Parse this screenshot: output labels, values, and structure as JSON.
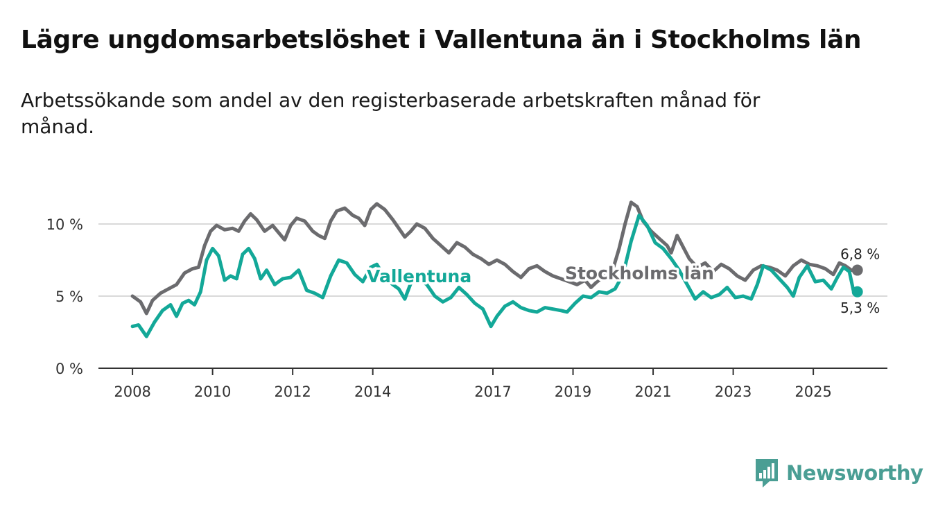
{
  "title": "Lägre ungdomsarbetslöshet i Vallentuna än i Stockholms län",
  "subtitle": "Arbetssökande som andel av den registerbaserade arbetskraften månad för månad.",
  "brand": {
    "name": "Newsworthy",
    "icon": "newsworthy-logo-icon",
    "color": "#4a9e94"
  },
  "chart_data": {
    "type": "line",
    "title": "Lägre ungdomsarbetslöshet i Vallentuna än i Stockholms län",
    "xlabel": "",
    "ylabel": "",
    "x_range": [
      2007.15,
      2026.85
    ],
    "ylim": [
      0,
      10
    ],
    "y_ticks": [
      {
        "value": 0,
        "label": "0 %"
      },
      {
        "value": 5,
        "label": "5 %"
      },
      {
        "value": 10,
        "label": "10 %"
      }
    ],
    "x_ticks": [
      {
        "value": 2008,
        "label": "2008"
      },
      {
        "value": 2010,
        "label": "2010"
      },
      {
        "value": 2012,
        "label": "2012"
      },
      {
        "value": 2014,
        "label": "2014"
      },
      {
        "value": 2017,
        "label": "2017"
      },
      {
        "value": 2019,
        "label": "2019"
      },
      {
        "value": 2021,
        "label": "2021"
      },
      {
        "value": 2023,
        "label": "2023"
      },
      {
        "value": 2025,
        "label": "2025"
      }
    ],
    "gridlines": "horizontal",
    "series": [
      {
        "name": "Stockholms län",
        "label": "Stockholms län",
        "color": "#6b6b6e",
        "label_at": [
          2018.8,
          6.6
        ],
        "end_label": "6,8 %",
        "end_value": 6.8,
        "points": [
          [
            2008.0,
            5.0
          ],
          [
            2008.2,
            4.6
          ],
          [
            2008.35,
            3.8
          ],
          [
            2008.5,
            4.7
          ],
          [
            2008.7,
            5.2
          ],
          [
            2008.9,
            5.5
          ],
          [
            2009.1,
            5.8
          ],
          [
            2009.3,
            6.6
          ],
          [
            2009.5,
            6.9
          ],
          [
            2009.65,
            7.0
          ],
          [
            2009.8,
            8.5
          ],
          [
            2009.95,
            9.5
          ],
          [
            2010.1,
            9.9
          ],
          [
            2010.3,
            9.6
          ],
          [
            2010.5,
            9.7
          ],
          [
            2010.65,
            9.5
          ],
          [
            2010.8,
            10.2
          ],
          [
            2010.95,
            10.7
          ],
          [
            2011.1,
            10.3
          ],
          [
            2011.3,
            9.5
          ],
          [
            2011.5,
            9.9
          ],
          [
            2011.65,
            9.4
          ],
          [
            2011.8,
            8.9
          ],
          [
            2011.95,
            9.9
          ],
          [
            2012.1,
            10.4
          ],
          [
            2012.3,
            10.2
          ],
          [
            2012.5,
            9.5
          ],
          [
            2012.65,
            9.2
          ],
          [
            2012.8,
            9.0
          ],
          [
            2012.95,
            10.2
          ],
          [
            2013.1,
            10.9
          ],
          [
            2013.3,
            11.1
          ],
          [
            2013.5,
            10.6
          ],
          [
            2013.65,
            10.4
          ],
          [
            2013.8,
            9.9
          ],
          [
            2013.95,
            11.0
          ],
          [
            2014.1,
            11.4
          ],
          [
            2014.3,
            11.0
          ],
          [
            2014.5,
            10.3
          ],
          [
            2014.65,
            9.7
          ],
          [
            2014.8,
            9.1
          ],
          [
            2014.95,
            9.5
          ],
          [
            2015.1,
            10.0
          ],
          [
            2015.3,
            9.7
          ],
          [
            2015.5,
            9.0
          ],
          [
            2015.7,
            8.5
          ],
          [
            2015.9,
            8.0
          ],
          [
            2016.1,
            8.7
          ],
          [
            2016.3,
            8.4
          ],
          [
            2016.5,
            7.9
          ],
          [
            2016.7,
            7.6
          ],
          [
            2016.9,
            7.2
          ],
          [
            2017.1,
            7.5
          ],
          [
            2017.3,
            7.2
          ],
          [
            2017.5,
            6.7
          ],
          [
            2017.7,
            6.3
          ],
          [
            2017.9,
            6.9
          ],
          [
            2018.1,
            7.1
          ],
          [
            2018.3,
            6.7
          ],
          [
            2018.5,
            6.4
          ],
          [
            2018.7,
            6.2
          ],
          [
            2018.9,
            6.0
          ],
          [
            2019.1,
            5.8
          ],
          [
            2019.3,
            6.1
          ],
          [
            2019.45,
            5.6
          ],
          [
            2019.6,
            6.0
          ],
          [
            2019.8,
            6.4
          ],
          [
            2020.0,
            6.9
          ],
          [
            2020.15,
            8.3
          ],
          [
            2020.3,
            10.0
          ],
          [
            2020.45,
            11.5
          ],
          [
            2020.6,
            11.2
          ],
          [
            2020.75,
            10.2
          ],
          [
            2020.95,
            9.5
          ],
          [
            2021.15,
            9.0
          ],
          [
            2021.35,
            8.5
          ],
          [
            2021.45,
            8.0
          ],
          [
            2021.6,
            9.2
          ],
          [
            2021.75,
            8.4
          ],
          [
            2021.9,
            7.6
          ],
          [
            2022.1,
            7.0
          ],
          [
            2022.3,
            7.3
          ],
          [
            2022.5,
            6.7
          ],
          [
            2022.7,
            7.2
          ],
          [
            2022.9,
            6.9
          ],
          [
            2023.1,
            6.4
          ],
          [
            2023.3,
            6.1
          ],
          [
            2023.5,
            6.8
          ],
          [
            2023.7,
            7.1
          ],
          [
            2023.9,
            7.0
          ],
          [
            2024.1,
            6.8
          ],
          [
            2024.3,
            6.4
          ],
          [
            2024.5,
            7.1
          ],
          [
            2024.7,
            7.5
          ],
          [
            2024.9,
            7.2
          ],
          [
            2025.1,
            7.1
          ],
          [
            2025.3,
            6.9
          ],
          [
            2025.5,
            6.5
          ],
          [
            2025.65,
            7.3
          ],
          [
            2025.8,
            7.1
          ],
          [
            2025.95,
            6.8
          ],
          [
            2026.1,
            6.8
          ]
        ]
      },
      {
        "name": "Vallentuna",
        "label": "Vallentuna",
        "color": "#13a898",
        "label_at": [
          2013.85,
          6.4
        ],
        "end_label": "5,3 %",
        "end_value": 5.3,
        "points": [
          [
            2008.0,
            2.9
          ],
          [
            2008.15,
            3.0
          ],
          [
            2008.35,
            2.2
          ],
          [
            2008.55,
            3.2
          ],
          [
            2008.75,
            4.0
          ],
          [
            2008.95,
            4.4
          ],
          [
            2009.1,
            3.6
          ],
          [
            2009.25,
            4.5
          ],
          [
            2009.4,
            4.7
          ],
          [
            2009.55,
            4.4
          ],
          [
            2009.7,
            5.3
          ],
          [
            2009.85,
            7.5
          ],
          [
            2010.0,
            8.3
          ],
          [
            2010.15,
            7.8
          ],
          [
            2010.3,
            6.1
          ],
          [
            2010.45,
            6.4
          ],
          [
            2010.6,
            6.2
          ],
          [
            2010.75,
            7.9
          ],
          [
            2010.9,
            8.3
          ],
          [
            2011.05,
            7.6
          ],
          [
            2011.2,
            6.2
          ],
          [
            2011.35,
            6.8
          ],
          [
            2011.55,
            5.8
          ],
          [
            2011.75,
            6.2
          ],
          [
            2011.95,
            6.3
          ],
          [
            2012.15,
            6.8
          ],
          [
            2012.35,
            5.4
          ],
          [
            2012.55,
            5.2
          ],
          [
            2012.75,
            4.9
          ],
          [
            2012.95,
            6.4
          ],
          [
            2013.15,
            7.5
          ],
          [
            2013.35,
            7.3
          ],
          [
            2013.55,
            6.5
          ],
          [
            2013.75,
            6.0
          ],
          [
            2013.95,
            7.0
          ],
          [
            2014.1,
            7.2
          ],
          [
            2014.3,
            6.3
          ],
          [
            2014.5,
            5.8
          ],
          [
            2014.65,
            5.5
          ],
          [
            2014.8,
            4.8
          ],
          [
            2014.95,
            5.9
          ],
          [
            2015.15,
            6.2
          ],
          [
            2015.35,
            5.8
          ],
          [
            2015.55,
            5.0
          ],
          [
            2015.75,
            4.6
          ],
          [
            2015.95,
            4.9
          ],
          [
            2016.15,
            5.6
          ],
          [
            2016.35,
            5.1
          ],
          [
            2016.55,
            4.5
          ],
          [
            2016.75,
            4.1
          ],
          [
            2016.95,
            2.9
          ],
          [
            2017.1,
            3.6
          ],
          [
            2017.3,
            4.3
          ],
          [
            2017.5,
            4.6
          ],
          [
            2017.7,
            4.2
          ],
          [
            2017.9,
            4.0
          ],
          [
            2018.1,
            3.9
          ],
          [
            2018.3,
            4.2
          ],
          [
            2018.5,
            4.1
          ],
          [
            2018.7,
            4.0
          ],
          [
            2018.85,
            3.9
          ],
          [
            2019.05,
            4.5
          ],
          [
            2019.25,
            5.0
          ],
          [
            2019.45,
            4.9
          ],
          [
            2019.65,
            5.3
          ],
          [
            2019.85,
            5.2
          ],
          [
            2020.05,
            5.5
          ],
          [
            2020.25,
            6.5
          ],
          [
            2020.45,
            8.8
          ],
          [
            2020.65,
            10.6
          ],
          [
            2020.85,
            9.9
          ],
          [
            2021.05,
            8.7
          ],
          [
            2021.25,
            8.3
          ],
          [
            2021.45,
            7.6
          ],
          [
            2021.65,
            6.8
          ],
          [
            2021.85,
            5.8
          ],
          [
            2022.05,
            4.8
          ],
          [
            2022.25,
            5.3
          ],
          [
            2022.45,
            4.9
          ],
          [
            2022.65,
            5.1
          ],
          [
            2022.85,
            5.6
          ],
          [
            2023.05,
            4.9
          ],
          [
            2023.25,
            5.0
          ],
          [
            2023.45,
            4.8
          ],
          [
            2023.6,
            5.8
          ],
          [
            2023.75,
            7.1
          ],
          [
            2023.95,
            6.8
          ],
          [
            2024.15,
            6.2
          ],
          [
            2024.35,
            5.6
          ],
          [
            2024.5,
            5.0
          ],
          [
            2024.65,
            6.3
          ],
          [
            2024.85,
            7.1
          ],
          [
            2025.05,
            6.0
          ],
          [
            2025.25,
            6.1
          ],
          [
            2025.45,
            5.5
          ],
          [
            2025.6,
            6.3
          ],
          [
            2025.75,
            7.0
          ],
          [
            2025.9,
            6.7
          ],
          [
            2026.0,
            5.4
          ],
          [
            2026.1,
            5.3
          ]
        ]
      }
    ]
  }
}
